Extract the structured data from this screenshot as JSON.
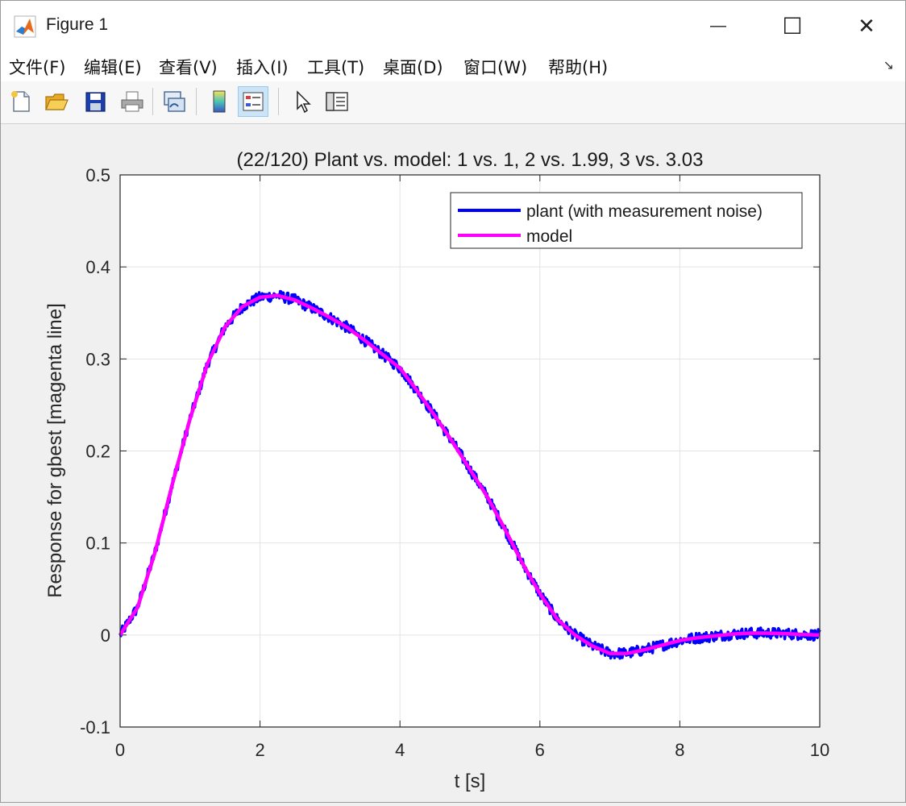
{
  "window": {
    "title": "Figure 1",
    "minimize": "—",
    "maximize": "☐",
    "close": "✕"
  },
  "menu": [
    "文件(F)",
    "编辑(E)",
    "查看(V)",
    "插入(I)",
    "工具(T)",
    "桌面(D)",
    "窗口(W)",
    "帮助(H)"
  ],
  "menu_overflow": "↘",
  "toolbar_icons": [
    "new-figure-icon",
    "open-icon",
    "save-icon",
    "print-icon",
    "link-plot-icon",
    "colorbar-icon",
    "legend-icon",
    "pointer-icon",
    "property-editor-icon"
  ],
  "chart_data": {
    "type": "line",
    "title": "(22/120) Plant vs. model: 1 vs. 1, 2 vs. 1.99, 3 vs. 3.03",
    "xlabel": "t [s]",
    "ylabel": "Response for gbest [magenta line]",
    "xlim": [
      0,
      10
    ],
    "ylim": [
      -0.1,
      0.5
    ],
    "xticks": [
      0,
      2,
      4,
      6,
      8,
      10
    ],
    "yticks": [
      -0.1,
      0,
      0.1,
      0.2,
      0.3,
      0.4,
      0.5
    ],
    "ytick_labels": [
      "-0.1",
      "0",
      "0.1",
      "0.2",
      "0.3",
      "0.4",
      "0.5"
    ],
    "grid": true,
    "legend_position": "top-right",
    "series": [
      {
        "name": "plant (with measurement noise)",
        "color": "#0000ff",
        "noise_amplitude": 0.006,
        "x": [
          0,
          0.25,
          0.5,
          0.75,
          1.0,
          1.25,
          1.5,
          1.75,
          2.0,
          2.25,
          2.5,
          2.75,
          3.0,
          3.25,
          3.5,
          3.75,
          4.0,
          4.25,
          4.5,
          4.75,
          5.0,
          5.25,
          5.5,
          5.75,
          6.0,
          6.25,
          6.5,
          6.75,
          7.0,
          7.25,
          7.5,
          7.75,
          8.0,
          8.25,
          8.5,
          8.75,
          9.0,
          9.25,
          9.5,
          9.75,
          10.0
        ],
        "y": [
          0.0,
          0.03,
          0.09,
          0.165,
          0.235,
          0.295,
          0.335,
          0.357,
          0.367,
          0.369,
          0.364,
          0.355,
          0.345,
          0.334,
          0.32,
          0.305,
          0.29,
          0.265,
          0.238,
          0.21,
          0.18,
          0.15,
          0.115,
          0.078,
          0.045,
          0.017,
          0.0,
          -0.012,
          -0.02,
          -0.02,
          -0.016,
          -0.011,
          -0.006,
          -0.003,
          -0.001,
          0.001,
          0.002,
          0.002,
          0.0015,
          0.0005,
          0.0
        ]
      },
      {
        "name": "model",
        "color": "#ff00ff",
        "x": [
          0,
          0.25,
          0.5,
          0.75,
          1.0,
          1.25,
          1.5,
          1.75,
          2.0,
          2.25,
          2.5,
          2.75,
          3.0,
          3.25,
          3.5,
          3.75,
          4.0,
          4.25,
          4.5,
          4.75,
          5.0,
          5.25,
          5.5,
          5.75,
          6.0,
          6.25,
          6.5,
          6.75,
          7.0,
          7.25,
          7.5,
          7.75,
          8.0,
          8.25,
          8.5,
          8.75,
          9.0,
          9.25,
          9.5,
          9.75,
          10.0
        ],
        "y": [
          0.0,
          0.03,
          0.09,
          0.165,
          0.235,
          0.295,
          0.335,
          0.357,
          0.367,
          0.369,
          0.364,
          0.355,
          0.345,
          0.334,
          0.32,
          0.305,
          0.29,
          0.265,
          0.238,
          0.21,
          0.18,
          0.15,
          0.115,
          0.078,
          0.045,
          0.017,
          0.0,
          -0.012,
          -0.02,
          -0.02,
          -0.016,
          -0.011,
          -0.006,
          -0.003,
          -0.001,
          0.001,
          0.002,
          0.002,
          0.0015,
          0.0005,
          0.0
        ]
      }
    ]
  }
}
